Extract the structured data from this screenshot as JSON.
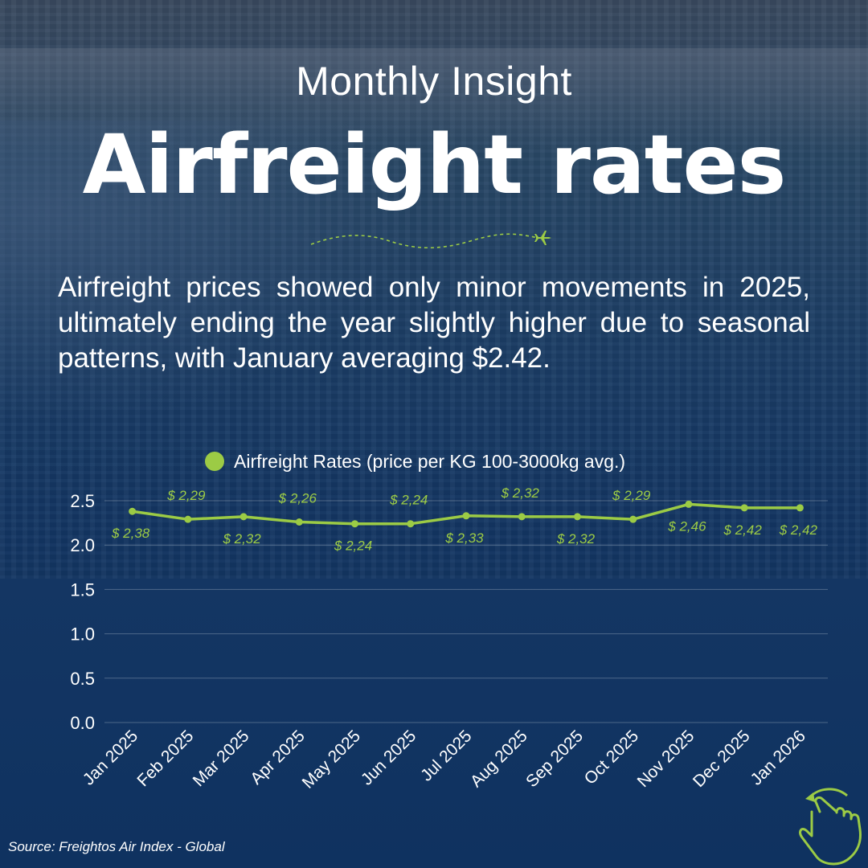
{
  "header": {
    "subtitle": "Monthly Insight",
    "title": "Airfreight rates"
  },
  "description": "Airfreight prices showed only minor movements in 2025, ultimately ending the year slightly higher due to seasonal patterns, with January averaging $2.42.",
  "source": "Source: Freightos Air Index - Global",
  "colors": {
    "accent": "#9ccb45",
    "background": "#153764",
    "text": "#ffffff"
  },
  "icons": {
    "plane": "airplane-icon",
    "swipe": "swipe-hand-icon"
  },
  "chart_data": {
    "type": "line",
    "title": "",
    "xlabel": "",
    "ylabel": "",
    "ylim": [
      0,
      2.5
    ],
    "yticks": [
      "0.0",
      "0.5",
      "1.0",
      "1.5",
      "2.0",
      "2.5"
    ],
    "categories": [
      "Jan 2025",
      "Feb 2025",
      "Mar 2025",
      "Apr 2025",
      "May 2025",
      "Jun 2025",
      "Jul 2025",
      "Aug 2025",
      "Sep 2025",
      "Oct 2025",
      "Nov 2025",
      "Dec 2025",
      "Jan 2026"
    ],
    "series": [
      {
        "name": "Airfreight Rates (price per KG 100-3000kg avg.)",
        "values": [
          2.38,
          2.29,
          2.32,
          2.26,
          2.24,
          2.24,
          2.33,
          2.32,
          2.32,
          2.29,
          2.46,
          2.42,
          2.42
        ],
        "labels": [
          "$ 2,38",
          "$ 2,29",
          "$ 2,32",
          "$ 2,26",
          "$ 2,24",
          "$ 2,24",
          "$ 2,33",
          "$ 2,32",
          "$ 2,32",
          "$ 2,29",
          "$ 2,46",
          "$ 2,42",
          "$ 2,42"
        ],
        "label_positions": [
          "below",
          "above",
          "below",
          "above",
          "below",
          "above",
          "below",
          "above",
          "below",
          "above",
          "below",
          "below",
          "below"
        ]
      }
    ],
    "legend": "top-center",
    "grid": true
  }
}
